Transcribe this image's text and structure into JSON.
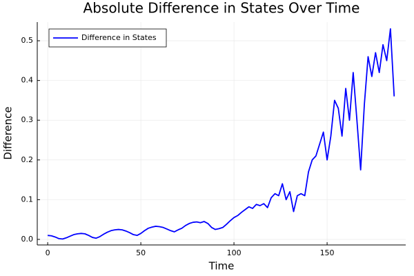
{
  "chart_data": {
    "type": "line",
    "title": "Absolute Difference in States Over Time",
    "x_label": "Time",
    "y_label": "Difference",
    "x": [
      0,
      2,
      4,
      6,
      8,
      10,
      12,
      14,
      16,
      18,
      20,
      22,
      24,
      26,
      28,
      30,
      32,
      34,
      36,
      38,
      40,
      42,
      44,
      46,
      48,
      50,
      52,
      54,
      56,
      58,
      60,
      62,
      64,
      66,
      68,
      70,
      72,
      74,
      76,
      78,
      80,
      82,
      84,
      86,
      88,
      90,
      92,
      94,
      96,
      98,
      100,
      102,
      104,
      106,
      108,
      110,
      112,
      114,
      116,
      118,
      120,
      122,
      124,
      126,
      128,
      130,
      132,
      134,
      136,
      138,
      140,
      142,
      144,
      146,
      148,
      150,
      152,
      154,
      156,
      158,
      160,
      162,
      164,
      166,
      168,
      170,
      172,
      174,
      176,
      178,
      180,
      182,
      184,
      186
    ],
    "series": [
      {
        "name": "Difference in States",
        "color": "#0000ff",
        "values": [
          0.01,
          0.009,
          0.006,
          0.002,
          0.001,
          0.004,
          0.008,
          0.012,
          0.014,
          0.015,
          0.014,
          0.01,
          0.005,
          0.003,
          0.007,
          0.013,
          0.018,
          0.022,
          0.024,
          0.025,
          0.024,
          0.021,
          0.017,
          0.012,
          0.01,
          0.015,
          0.022,
          0.028,
          0.031,
          0.033,
          0.032,
          0.03,
          0.026,
          0.022,
          0.019,
          0.024,
          0.028,
          0.035,
          0.04,
          0.043,
          0.044,
          0.042,
          0.045,
          0.04,
          0.03,
          0.025,
          0.027,
          0.03,
          0.038,
          0.047,
          0.055,
          0.06,
          0.068,
          0.075,
          0.082,
          0.078,
          0.088,
          0.085,
          0.09,
          0.08,
          0.105,
          0.115,
          0.11,
          0.14,
          0.1,
          0.12,
          0.07,
          0.11,
          0.115,
          0.11,
          0.17,
          0.2,
          0.21,
          0.24,
          0.27,
          0.2,
          0.26,
          0.35,
          0.33,
          0.26,
          0.38,
          0.3,
          0.42,
          0.3,
          0.175,
          0.34,
          0.46,
          0.41,
          0.47,
          0.42,
          0.49,
          0.45,
          0.53,
          0.36
        ]
      }
    ],
    "xlim": [
      -5.6,
      192.2
    ],
    "xticks": [
      0,
      50,
      100,
      150
    ],
    "ylim": [
      -0.014,
      0.547
    ],
    "yticks": [
      {
        "value": 0,
        "label": "0.0"
      },
      0.1,
      0.2,
      0.3,
      0.4,
      0.5
    ],
    "grid": true,
    "legend_position": "top-left"
  }
}
